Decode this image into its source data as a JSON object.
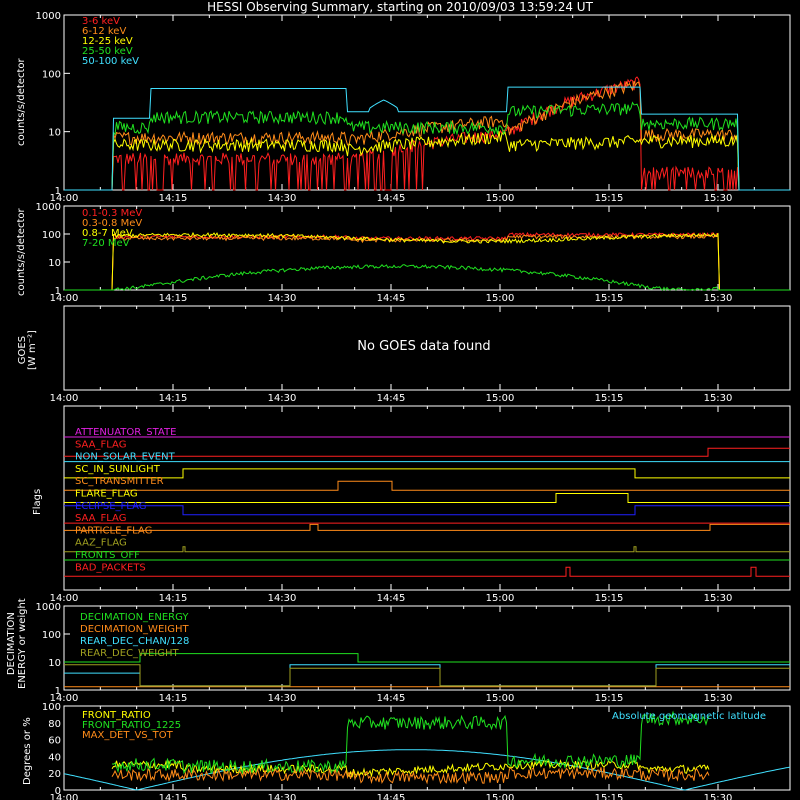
{
  "title": "HESSI Observing Summary, starting on 2010/09/03 13:59:24 UT",
  "time_ticks": [
    "14:00",
    "14:15",
    "14:30",
    "14:45",
    "15:00",
    "15:15",
    "15:30"
  ],
  "colors": {
    "red": "#ff2020",
    "orange": "#ff8c1a",
    "yellow": "#ffff00",
    "green": "#20e020",
    "cyan": "#40e0ff",
    "blue": "#2020ff",
    "magenta": "#e020e0",
    "olive": "#a0a020",
    "white": "#ffffff"
  },
  "chart_data": [
    {
      "type": "line",
      "ylabel": "counts/s/detector",
      "yscale": "log",
      "ylim": [
        1,
        1000
      ],
      "yticks": [
        "1",
        "10",
        "100",
        "1000"
      ],
      "series": [
        {
          "name": "3-6 keV",
          "color": "#ff2020"
        },
        {
          "name": "6-12 keV",
          "color": "#ff8c1a"
        },
        {
          "name": "12-25 keV",
          "color": "#ffff00"
        },
        {
          "name": "25-50 keV",
          "color": "#20e020"
        },
        {
          "name": "50-100 keV",
          "color": "#40e0ff"
        }
      ]
    },
    {
      "type": "line",
      "ylabel": "counts/s/detector",
      "yscale": "log",
      "ylim": [
        1,
        1000
      ],
      "yticks": [
        "1",
        "10",
        "100",
        "1000"
      ],
      "series": [
        {
          "name": "0.1-0.3 MeV",
          "color": "#ff2020"
        },
        {
          "name": "0.3-0.8 MeV",
          "color": "#ff8c1a"
        },
        {
          "name": "0.8-7 MeV",
          "color": "#ffff00"
        },
        {
          "name": "7-20 MeV",
          "color": "#20e020"
        }
      ]
    },
    {
      "type": "line",
      "ylabel": "GOES [W m-2]",
      "message": "No GOES data found"
    },
    {
      "type": "line",
      "ylabel": "Flags",
      "series": [
        {
          "name": "ATTENUATOR_STATE",
          "color": "#e020e0"
        },
        {
          "name": "SAA_FLAG",
          "color": "#ff2020"
        },
        {
          "name": "NON_SOLAR_EVENT",
          "color": "#40e0ff"
        },
        {
          "name": "SC_IN_SUNLIGHT",
          "color": "#ffff00"
        },
        {
          "name": "SC_TRANSMITTER",
          "color": "#ff8c1a"
        },
        {
          "name": "FLARE_FLAG",
          "color": "#ffff00"
        },
        {
          "name": "ECLIPSE_FLAG",
          "color": "#2020ff"
        },
        {
          "name": "SAA_FLAG",
          "color": "#ff2020"
        },
        {
          "name": "PARTICLE_FLAG",
          "color": "#ff8c1a"
        },
        {
          "name": "AAZ_FLAG",
          "color": "#a0a020"
        },
        {
          "name": "FRONTS_OFF",
          "color": "#20e020"
        },
        {
          "name": "BAD_PACKETS",
          "color": "#ff2020"
        }
      ]
    },
    {
      "type": "line",
      "ylabel": "DECIMATION ENERGY or weight",
      "yscale": "log",
      "ylim": [
        1,
        1000
      ],
      "yticks": [
        "1",
        "10",
        "100",
        "1000"
      ],
      "series": [
        {
          "name": "DECIMATION_ENERGY",
          "color": "#20e020"
        },
        {
          "name": "DECIMATION_WEIGHT",
          "color": "#ff8c1a"
        },
        {
          "name": "REAR_DEC_CHAN/128",
          "color": "#40e0ff"
        },
        {
          "name": "REAR_DEC_WEIGHT",
          "color": "#a0a020"
        }
      ]
    },
    {
      "type": "line",
      "ylabel": "Degrees or %",
      "ylim": [
        0,
        100
      ],
      "yticks": [
        "0",
        "20",
        "40",
        "60",
        "80",
        "100"
      ],
      "series": [
        {
          "name": "FRONT_RATIO",
          "color": "#ffff00"
        },
        {
          "name": "FRONT_RATIO_1225",
          "color": "#20e020"
        },
        {
          "name": "MAX_DET_VS_TOT",
          "color": "#ff8c1a"
        },
        {
          "name": "Absolute geomagnetic latitude",
          "color": "#40e0ff"
        }
      ]
    }
  ]
}
